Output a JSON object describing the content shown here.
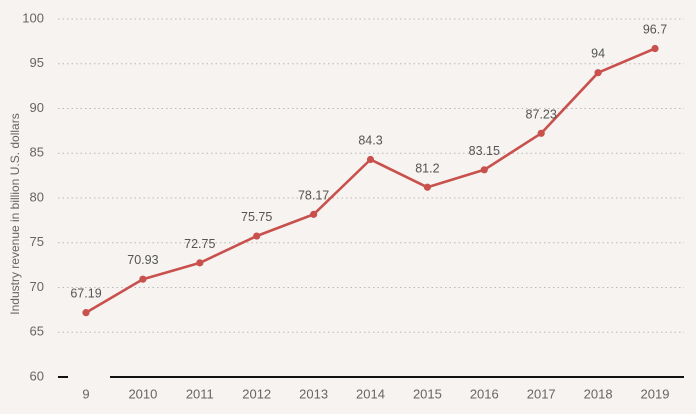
{
  "chart_data": {
    "type": "line",
    "title": "",
    "xlabel": "",
    "ylabel": "Industry revenue in billion U.S. dollars",
    "categories": [
      "9",
      "2010",
      "2011",
      "2012",
      "2013",
      "2014",
      "2015",
      "2016",
      "2017",
      "2018",
      "2019"
    ],
    "series": [
      {
        "name": "Industry revenue",
        "values": [
          67.19,
          70.93,
          72.75,
          75.75,
          78.17,
          84.3,
          81.2,
          83.15,
          87.23,
          94,
          96.7
        ],
        "labels": [
          "67.19",
          "70.93",
          "72.75",
          "75.75",
          "78.17",
          "84.3",
          "81.2",
          "83.15",
          "87.23",
          "94",
          "96.7"
        ]
      }
    ],
    "ylim": [
      60,
      100
    ],
    "yticks": [
      60,
      65,
      70,
      75,
      80,
      85,
      90,
      95,
      100
    ],
    "grid": true,
    "grid_style": "dotted",
    "legend": "none"
  },
  "colors": {
    "background": "#f6f3f0",
    "line": "#c9514d",
    "grid": "#b9b9b9",
    "axis": "#111111",
    "text": "#666666"
  }
}
